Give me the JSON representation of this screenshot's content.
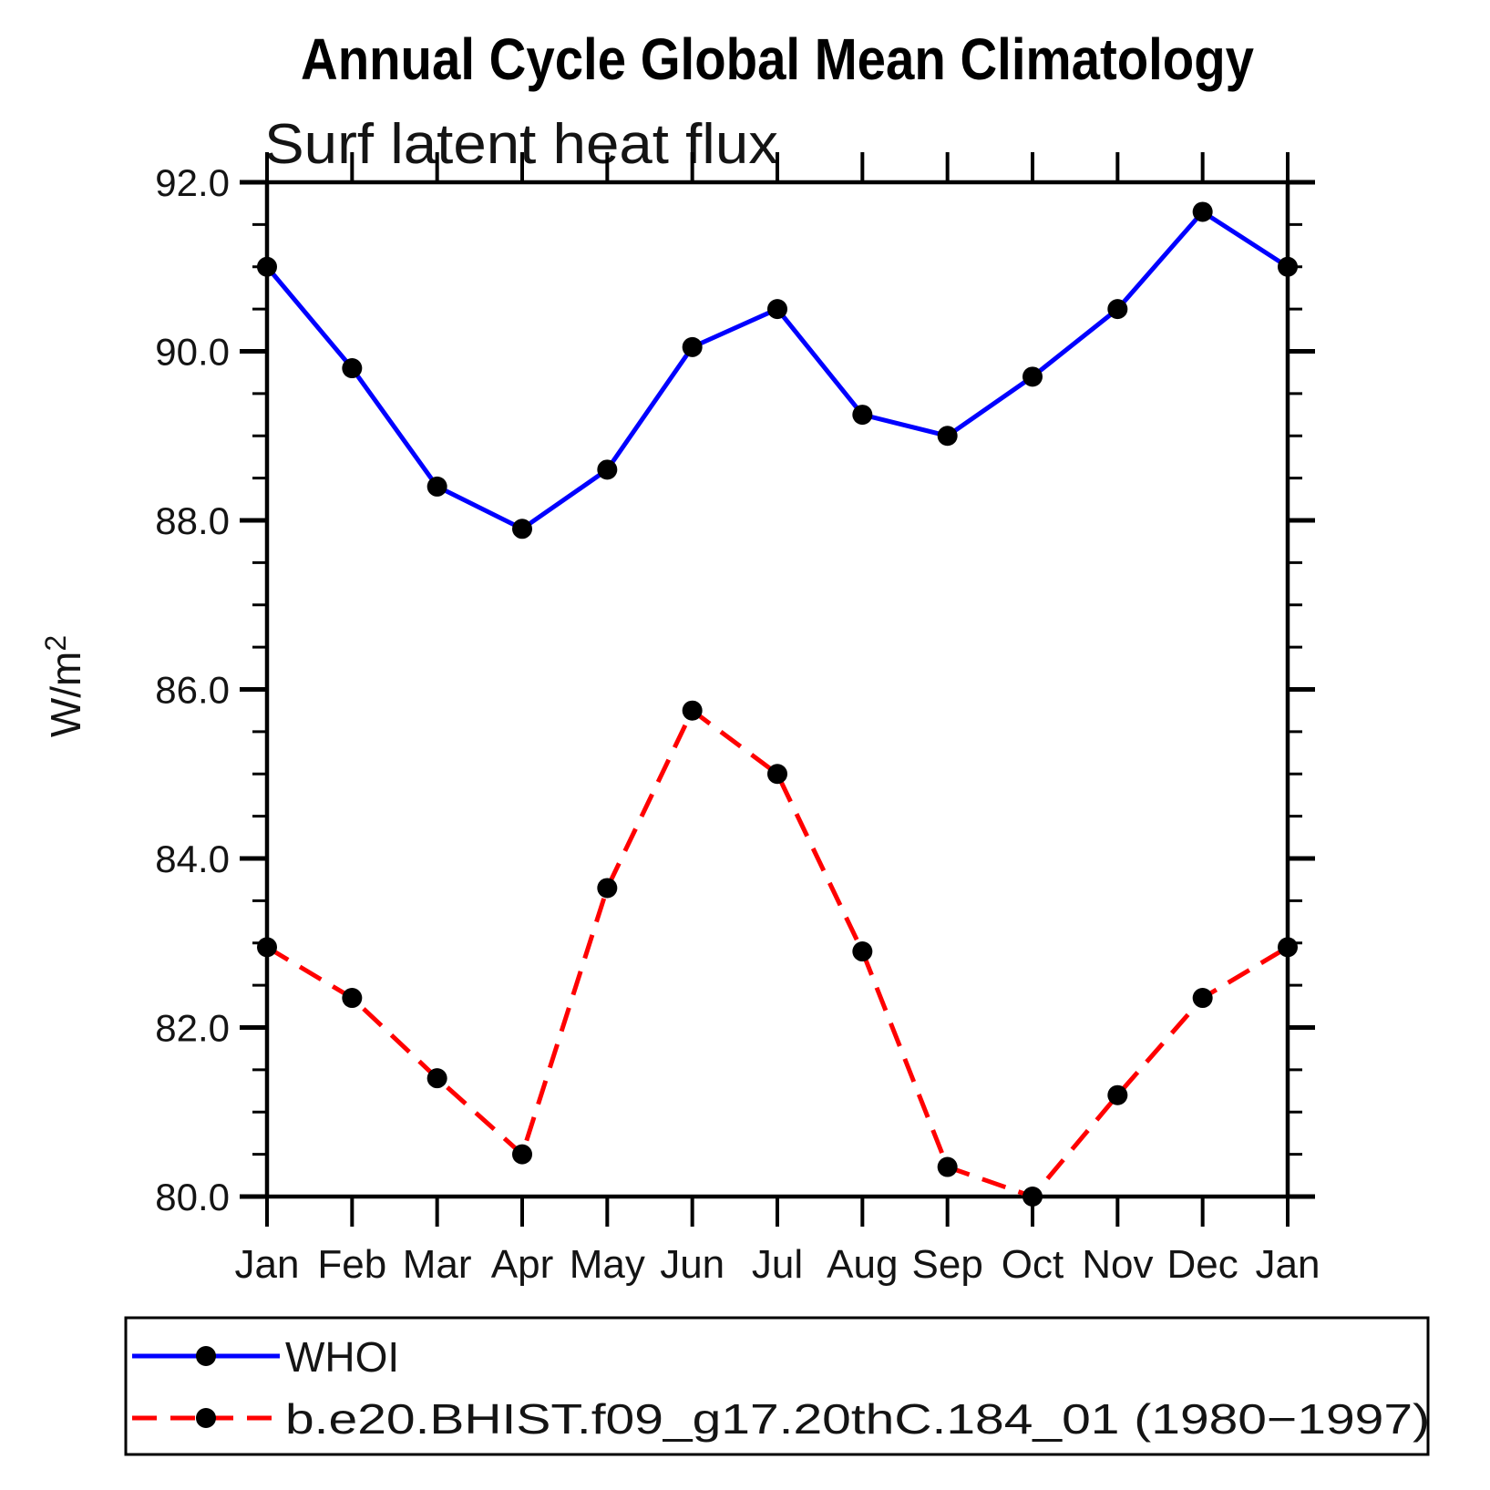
{
  "page": {
    "background": "#ffffff"
  },
  "chart_data": {
    "type": "line",
    "title": "Annual Cycle Global Mean Climatology",
    "subtitle": "Surf latent heat flux",
    "ylabel": "W/m²",
    "xlabel": "",
    "x_categories": [
      "Jan",
      "Feb",
      "Mar",
      "Apr",
      "May",
      "Jun",
      "Jul",
      "Aug",
      "Sep",
      "Oct",
      "Nov",
      "Dec",
      "Jan"
    ],
    "ylim": [
      80.0,
      92.0
    ],
    "y_major_ticks": [
      80,
      82,
      84,
      86,
      88,
      90,
      92
    ],
    "y_major_tick_labels": [
      "80.0",
      "82.0",
      "84.0",
      "86.0",
      "88.0",
      "90.0",
      "92.0"
    ],
    "y_minor_tick_step": 0.5,
    "grid": false,
    "legend_position": "bottom-left",
    "axis_color": "#000000",
    "series": [
      {
        "name": "WHOI",
        "color": "#0000ff",
        "style": "solid",
        "marker": "filled-circle",
        "marker_color": "#000000",
        "values": [
          91.0,
          89.8,
          88.4,
          87.9,
          88.6,
          90.05,
          90.5,
          89.25,
          89.0,
          89.7,
          90.5,
          91.65,
          91.0
        ]
      },
      {
        "name": "b.e20.BHIST.f09_g17.20thC.184_01 (1980−1997)",
        "color": "#ff0000",
        "style": "dashed",
        "marker": "filled-circle",
        "marker_color": "#000000",
        "values": [
          82.95,
          82.35,
          81.4,
          80.5,
          83.65,
          85.75,
          85.0,
          82.9,
          80.35,
          80.0,
          81.2,
          82.35,
          82.95
        ]
      }
    ]
  }
}
